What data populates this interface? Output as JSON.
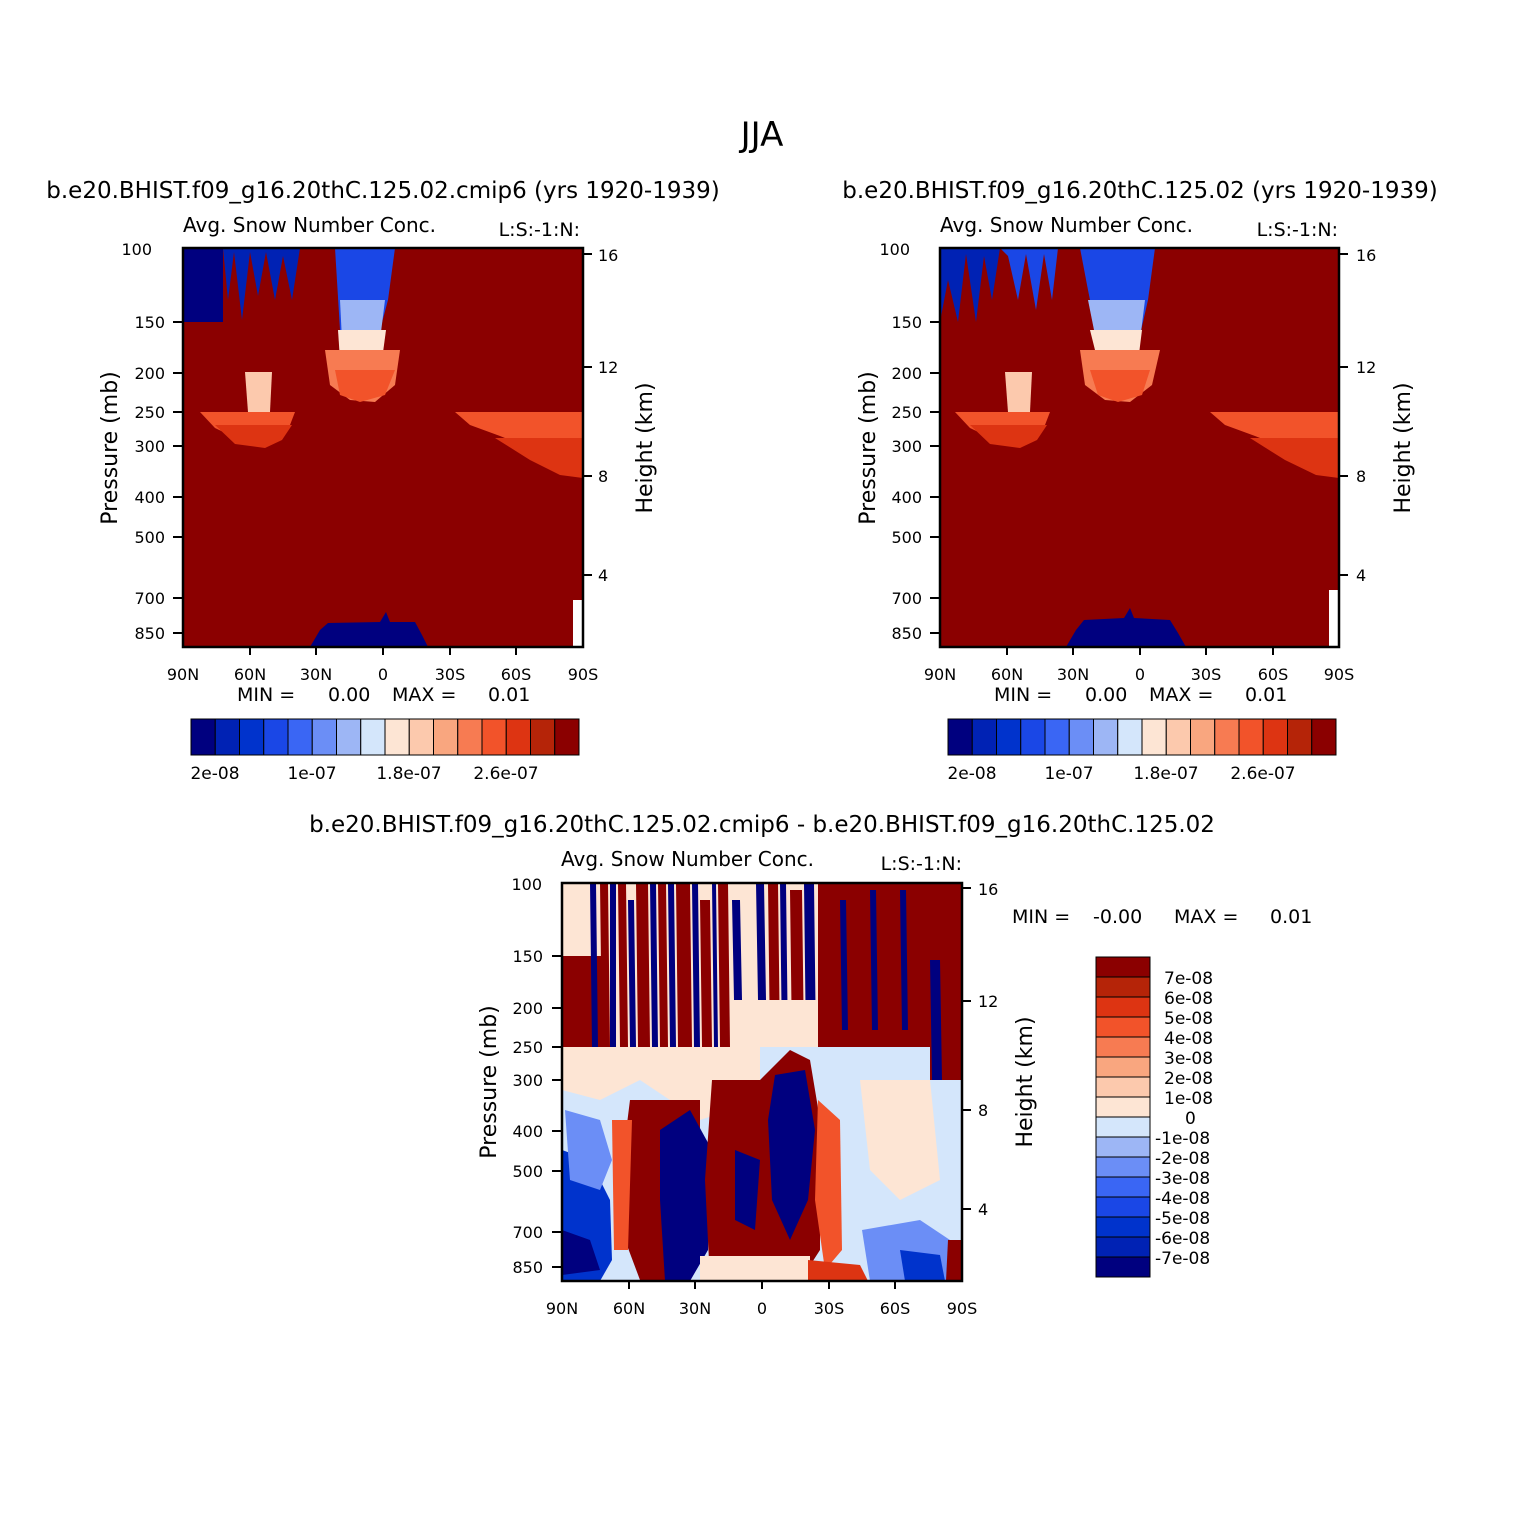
{
  "figure_title": "JJA",
  "colors": {
    "negative": [
      "#00007f",
      "#0022b4",
      "#0033cc",
      "#1a47e6",
      "#3a66f4",
      "#6b8ef6",
      "#9db6f5",
      "#d4e6fb"
    ],
    "positive": [
      "#fde5d4",
      "#fcc9ad",
      "#f9a67f",
      "#f77b52",
      "#f2532a",
      "#dd3412",
      "#b52408",
      "#8b0000"
    ]
  },
  "chart_data": [
    {
      "type": "contour",
      "case": "b.e20.BHIST.f09_g16.20thC.125.02.cmip6 (yrs 1920-1939)",
      "subtitle_left": "Avg. Snow Number Conc.",
      "subtitle_right": "L:S:-1:N:",
      "ylabel_left": "Pressure (mb)",
      "ylabel_right": "Height (km)",
      "x_ticks": [
        "90N",
        "60N",
        "30N",
        "0",
        "30S",
        "60S",
        "90S"
      ],
      "pressure_ticks": [
        100,
        150,
        200,
        250,
        300,
        400,
        500,
        700,
        850
      ],
      "height_ticks": [
        16,
        12,
        8,
        4
      ],
      "stats": {
        "min_label": "MIN =",
        "min": "0.00",
        "max_label": "MAX =",
        "max": "0.01"
      },
      "colorbar_labels": [
        "2e-08",
        "1e-07",
        "1.8e-07",
        "2.6e-07"
      ],
      "colorbar_count": 16
    },
    {
      "type": "contour",
      "case": "b.e20.BHIST.f09_g16.20thC.125.02 (yrs 1920-1939)",
      "subtitle_left": "Avg. Snow Number Conc.",
      "subtitle_right": "L:S:-1:N:",
      "ylabel_left": "Pressure (mb)",
      "ylabel_right": "Height (km)",
      "x_ticks": [
        "90N",
        "60N",
        "30N",
        "0",
        "30S",
        "60S",
        "90S"
      ],
      "pressure_ticks": [
        100,
        150,
        200,
        250,
        300,
        400,
        500,
        700,
        850
      ],
      "height_ticks": [
        16,
        12,
        8,
        4
      ],
      "stats": {
        "min_label": "MIN =",
        "min": "0.00",
        "max_label": "MAX =",
        "max": "0.01"
      },
      "colorbar_labels": [
        "2e-08",
        "1e-07",
        "1.8e-07",
        "2.6e-07"
      ],
      "colorbar_count": 16
    },
    {
      "type": "contour",
      "case": "b.e20.BHIST.f09_g16.20thC.125.02.cmip6 - b.e20.BHIST.f09_g16.20thC.125.02",
      "subtitle_left": "Avg. Snow Number Conc.",
      "subtitle_right": "L:S:-1:N:",
      "ylabel_left": "Pressure (mb)",
      "ylabel_right": "Height (km)",
      "x_ticks": [
        "90N",
        "60N",
        "30N",
        "0",
        "30S",
        "60S",
        "90S"
      ],
      "pressure_ticks": [
        100,
        150,
        200,
        250,
        300,
        400,
        500,
        700,
        850
      ],
      "height_ticks": [
        16,
        12,
        8,
        4
      ],
      "stats": {
        "min_label": "MIN =",
        "min": "-0.00",
        "max_label": "MAX =",
        "max": "0.01"
      },
      "colorbar_labels": [
        "7e-08",
        "6e-08",
        "5e-08",
        "4e-08",
        "3e-08",
        "2e-08",
        "1e-08",
        "0",
        "-1e-08",
        "-2e-08",
        "-3e-08",
        "-4e-08",
        "-5e-08",
        "-6e-08",
        "-7e-08"
      ],
      "colorbar_count": 16
    }
  ]
}
